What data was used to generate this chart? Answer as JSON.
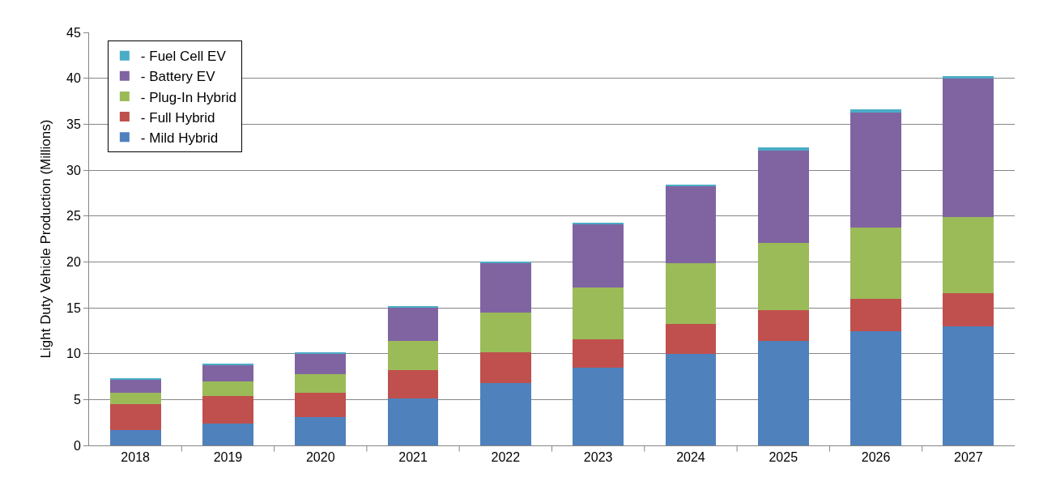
{
  "chart_data": {
    "type": "bar",
    "stacked": true,
    "ylabel": "Light Duty Vehicle Production (Millions)",
    "categories": [
      "2018",
      "2019",
      "2020",
      "2021",
      "2022",
      "2023",
      "2024",
      "2025",
      "2026",
      "2027"
    ],
    "series": [
      {
        "name": "- Mild Hybrid",
        "color": "#4f81bd",
        "values": [
          1.65,
          2.35,
          3.1,
          5.1,
          6.8,
          8.5,
          10.0,
          11.4,
          12.45,
          13.0
        ]
      },
      {
        "name": "- Full Hybrid",
        "color": "#c0504d",
        "values": [
          2.85,
          3.05,
          2.65,
          3.1,
          3.35,
          3.1,
          3.2,
          3.3,
          3.5,
          3.55
        ]
      },
      {
        "name": "- Plug-In Hybrid",
        "color": "#9bbb59",
        "values": [
          1.25,
          1.6,
          2.05,
          3.2,
          4.35,
          5.65,
          6.65,
          7.35,
          7.8,
          8.3
        ]
      },
      {
        "name": "- Battery EV",
        "color": "#8064a2",
        "values": [
          1.45,
          1.75,
          2.2,
          3.6,
          5.4,
          6.85,
          8.35,
          10.05,
          12.5,
          15.1
        ]
      },
      {
        "name": "- Fuel Cell EV",
        "color": "#4bacc6",
        "values": [
          0.1,
          0.1,
          0.1,
          0.1,
          0.1,
          0.2,
          0.2,
          0.35,
          0.35,
          0.3
        ]
      }
    ],
    "ylim": [
      0,
      45
    ],
    "yticks": [
      0,
      5,
      10,
      15,
      20,
      25,
      30,
      35,
      40,
      45
    ],
    "grid": "y",
    "legend": "top left"
  }
}
